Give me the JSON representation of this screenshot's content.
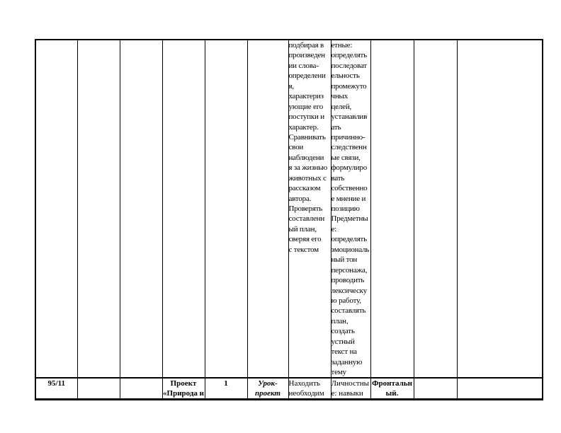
{
  "document": {
    "kind": "lesson-plan-table-page",
    "background_color": "#ffffff",
    "border_color": "#000000",
    "text_color": "#000000"
  },
  "table": {
    "row_tall": {
      "activities": "подбирая в\nпроизведен\nии слова-\nопределени\nя,\nхарактериз\nующие его\nпоступки и\nхарактер.\nСравнивать\nсвои\nнаблюдени\nя за жизнью\nживотных с\nрассказом\nавтора.\nПроверять\nсоставленн\nый план,\nсверяя его\nс текстом",
      "uud": "етные:\nопределять\nпоследоват\nельность\nпромежуто\nчных\nцелей,\nустанавлив\nать\nпричинно-\nследственн\nые связи,\nформулиро\nвать\nсобственно\nе мнение и\nпозицию\nПредметны\nе:\nопределять\nэмоциональ\nный тон\nперсонажа,\nпроводить\nлексическу\nю работу,\nсоставлять\nплан,\nсоздать\nустный\nтекст на\nзаданную\nтему"
    },
    "row_bottom": {
      "lesson_number": "95/11",
      "topic": "Проект\n«Природа и",
      "hours": "1",
      "lesson_type": "Урок-\nпроект",
      "activities": "Находить\nнеобходим",
      "uud": "Личностны\nе: навыки",
      "control_form": "Фронтальн\nый."
    }
  }
}
